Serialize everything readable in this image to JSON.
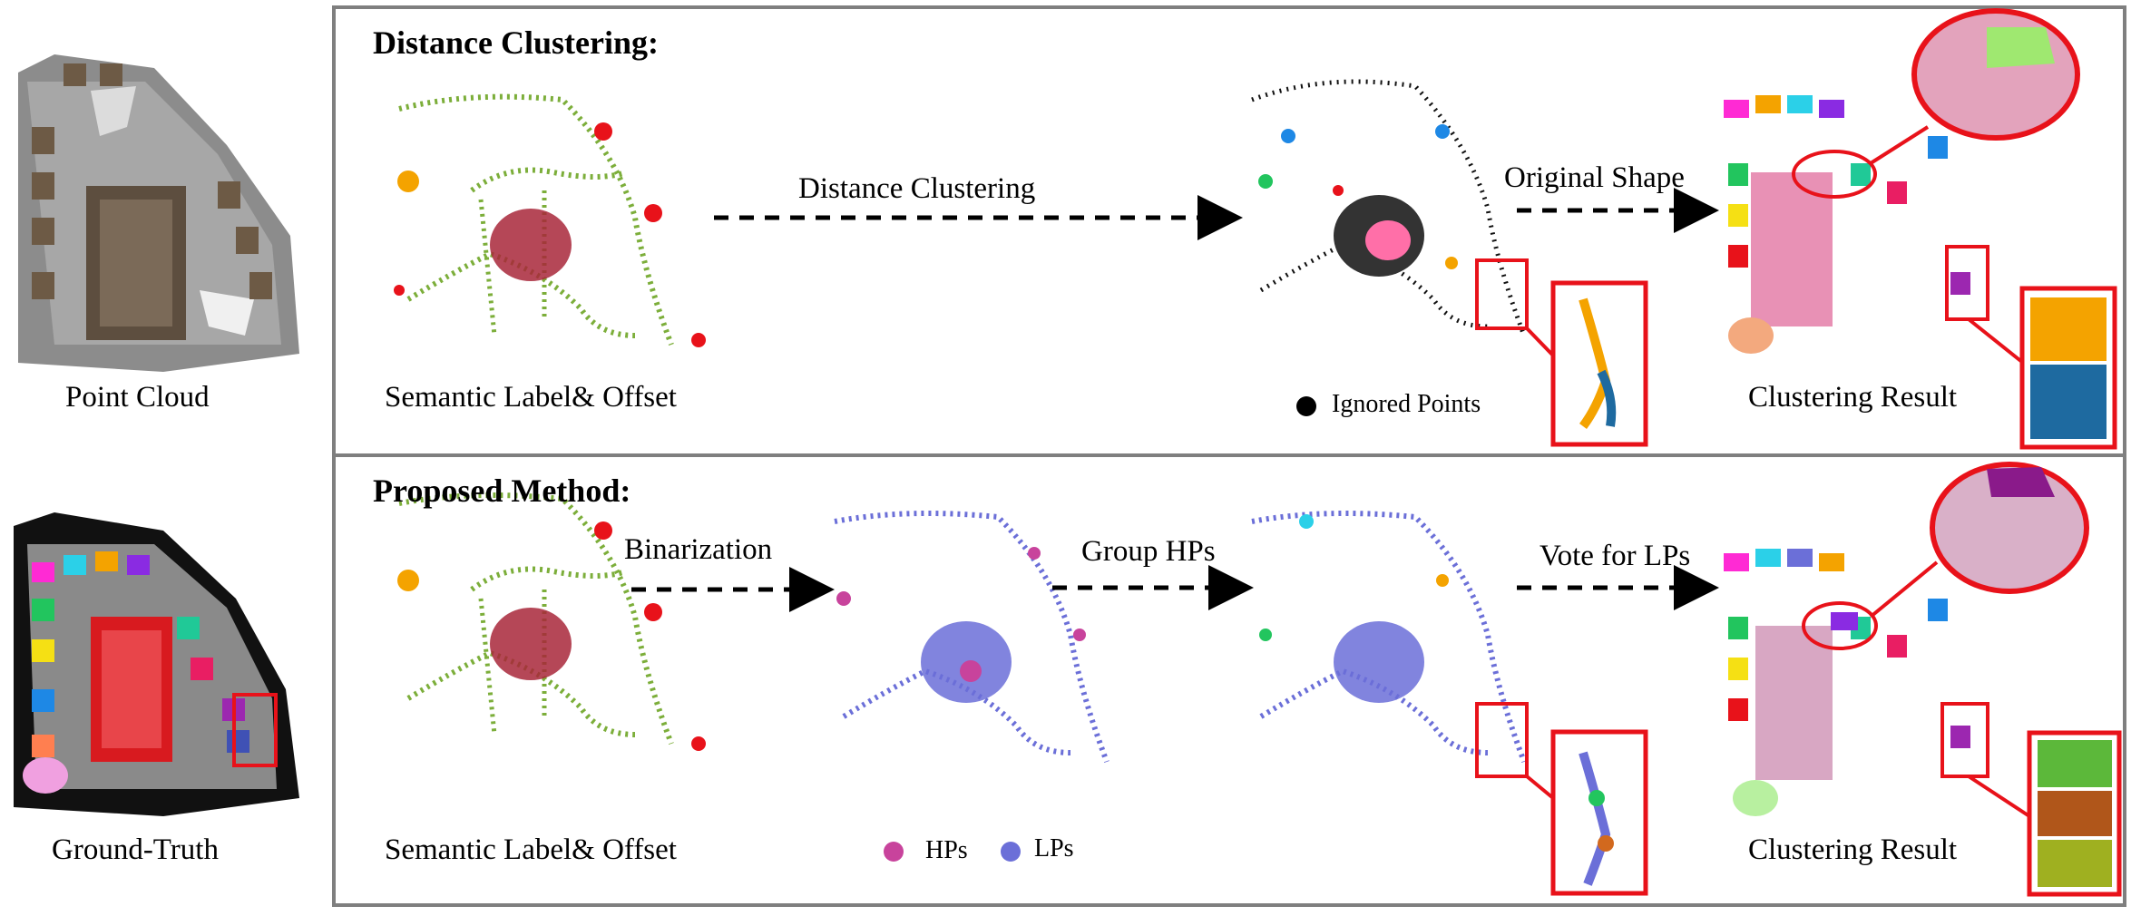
{
  "left_column": {
    "point_cloud_label": "Point Cloud",
    "ground_truth_label": "Ground-Truth"
  },
  "top_panel": {
    "title": "Distance Clustering:",
    "input_label": "Semantic Label& Offset",
    "arrow1_label": "Distance Clustering",
    "arrow2_label": "Original Shape",
    "legend_ignored": "Ignored Points",
    "result_label": "Clustering Result"
  },
  "bottom_panel": {
    "title": "Proposed Method:",
    "input_label": "Semantic Label& Offset",
    "arrow1_label": "Binarization",
    "arrow2_label": "Group HPs",
    "arrow3_label": "Vote for LPs",
    "legend_hps": "HPs",
    "legend_lps": "LPs",
    "result_label": "Clustering Result"
  },
  "colors": {
    "frame": "#7f7f7f",
    "highlight": "#e8121a",
    "semantic_green": "#7cae3a",
    "semantic_darkred": "#a8273a",
    "hp_color": "#c8439c",
    "lp_color": "#6b6fd8"
  }
}
